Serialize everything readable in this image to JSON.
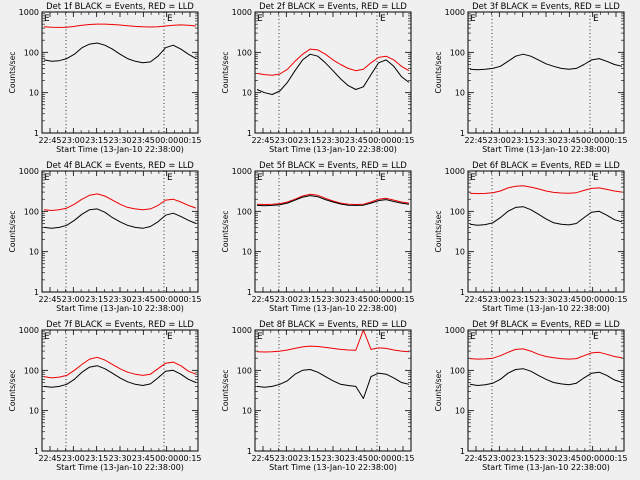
{
  "colors": {
    "background": "#f0f0f0",
    "events": "#000000",
    "lld": "#ee0000"
  },
  "chart_data": [
    {
      "type": "line",
      "title": "Det 1f BLACK = Events, RED = LLD",
      "xlabel": "Start Time (13-Jan-10 22:38:00)",
      "ylabel": "Counts/sec",
      "ylim": [
        1,
        1000
      ],
      "yscale": "log",
      "xticks": [
        "22:45",
        "23:00",
        "23:15",
        "23:30",
        "23:45",
        "00:00",
        "00:15"
      ],
      "yticks": [
        "1",
        "10",
        "100",
        "1000"
      ],
      "markers": [
        "E",
        "E"
      ],
      "grid": false,
      "series": [
        {
          "color": "red",
          "values": [
            430,
            420,
            415,
            420,
            440,
            470,
            490,
            500,
            500,
            490,
            475,
            455,
            440,
            430,
            425,
            430,
            450,
            470,
            480,
            470,
            450
          ]
        },
        {
          "color": "black",
          "values": [
            65,
            60,
            62,
            70,
            90,
            130,
            160,
            170,
            150,
            120,
            90,
            70,
            60,
            55,
            58,
            80,
            130,
            150,
            120,
            90,
            70
          ]
        }
      ]
    },
    {
      "type": "line",
      "title": "Det 2f BLACK = Events, RED = LLD",
      "xlabel": "Start Time (13-Jan-10 22:38:00)",
      "ylabel": "Counts/sec",
      "ylim": [
        1,
        1000
      ],
      "yscale": "log",
      "xticks": [
        "22:45",
        "23:00",
        "23:15",
        "23:30",
        "23:45",
        "00:00",
        "00:15"
      ],
      "yticks": [
        "1",
        "10",
        "100",
        "1000"
      ],
      "markers": [
        "E",
        "E"
      ],
      "grid": false,
      "series": [
        {
          "color": "red",
          "values": [
            30,
            28,
            27,
            29,
            38,
            60,
            90,
            120,
            115,
            90,
            65,
            50,
            40,
            35,
            38,
            55,
            75,
            80,
            65,
            45,
            35
          ]
        },
        {
          "color": "black",
          "values": [
            12,
            10,
            9,
            11,
            18,
            35,
            65,
            90,
            80,
            55,
            35,
            22,
            15,
            12,
            14,
            28,
            55,
            65,
            45,
            25,
            18
          ]
        }
      ]
    },
    {
      "type": "line",
      "title": "Det 3f BLACK = Events, RED = LLD",
      "xlabel": "Start Time (13-Jan-10 22:38:00)",
      "ylabel": "Counts/sec",
      "ylim": [
        1,
        1000
      ],
      "yscale": "log",
      "xticks": [
        "22:45",
        "23:00",
        "23:15",
        "23:30",
        "23:45",
        "00:00",
        "00:15"
      ],
      "yticks": [
        "1",
        "10",
        "100",
        "1000"
      ],
      "markers": [
        "E",
        "E"
      ],
      "grid": false,
      "series": [
        {
          "color": "black",
          "values": [
            38,
            37,
            38,
            40,
            45,
            60,
            80,
            90,
            80,
            65,
            52,
            45,
            40,
            38,
            40,
            50,
            65,
            70,
            60,
            50,
            45
          ]
        }
      ]
    },
    {
      "type": "line",
      "title": "Det 4f BLACK = Events, RED = LLD",
      "xlabel": "Start Time (13-Jan-10 22:38:00)",
      "ylabel": "Counts/sec",
      "ylim": [
        1,
        1000
      ],
      "yscale": "log",
      "xticks": [
        "22:45",
        "23:00",
        "23:15",
        "23:30",
        "23:45",
        "00:00",
        "00:15"
      ],
      "yticks": [
        "1",
        "10",
        "100",
        "1000"
      ],
      "markers": [
        "E",
        "E"
      ],
      "grid": false,
      "series": [
        {
          "color": "red",
          "values": [
            110,
            105,
            110,
            120,
            150,
            200,
            250,
            270,
            240,
            190,
            150,
            125,
            115,
            110,
            115,
            140,
            190,
            200,
            170,
            140,
            120
          ]
        },
        {
          "color": "black",
          "values": [
            40,
            38,
            40,
            45,
            60,
            85,
            110,
            115,
            95,
            70,
            55,
            45,
            40,
            38,
            42,
            55,
            80,
            90,
            75,
            60,
            50
          ]
        }
      ]
    },
    {
      "type": "line",
      "title": "Det 5f BLACK = Events, RED = LLD",
      "xlabel": "Start Time (13-Jan-10 22:38:00)",
      "ylabel": "Counts/sec",
      "ylim": [
        1,
        1000
      ],
      "yscale": "log",
      "xticks": [
        "22:45",
        "23:00",
        "23:15",
        "23:30",
        "23:45",
        "00:00",
        "00:15"
      ],
      "yticks": [
        "1",
        "10",
        "100",
        "1000"
      ],
      "markers": [
        "E",
        "E"
      ],
      "grid": false,
      "series": [
        {
          "color": "red",
          "values": [
            150,
            148,
            150,
            155,
            170,
            200,
            240,
            265,
            250,
            210,
            180,
            160,
            150,
            148,
            150,
            170,
            200,
            210,
            190,
            170,
            160
          ]
        },
        {
          "color": "black",
          "values": [
            140,
            138,
            140,
            145,
            160,
            190,
            225,
            245,
            230,
            195,
            170,
            152,
            142,
            140,
            142,
            160,
            185,
            195,
            175,
            160,
            150
          ]
        }
      ]
    },
    {
      "type": "line",
      "title": "Det 6f BLACK = Events, RED = LLD",
      "xlabel": "Start Time (13-Jan-10 22:38:00)",
      "ylabel": "Counts/sec",
      "ylim": [
        1,
        1000
      ],
      "yscale": "log",
      "xticks": [
        "22:45",
        "23:00",
        "23:15",
        "23:30",
        "23:45",
        "00:00",
        "00:15"
      ],
      "yticks": [
        "1",
        "10",
        "100",
        "1000"
      ],
      "markers": [
        "E",
        "E"
      ],
      "grid": false,
      "series": [
        {
          "color": "red",
          "values": [
            280,
            275,
            278,
            290,
            320,
            380,
            420,
            430,
            400,
            360,
            320,
            295,
            285,
            280,
            290,
            330,
            370,
            380,
            350,
            320,
            300
          ]
        },
        {
          "color": "black",
          "values": [
            48,
            45,
            47,
            52,
            70,
            100,
            125,
            130,
            110,
            85,
            65,
            52,
            48,
            46,
            50,
            70,
            95,
            100,
            80,
            62,
            55
          ]
        }
      ]
    },
    {
      "type": "line",
      "title": "Det 7f BLACK = Events, RED = LLD",
      "xlabel": "Start Time (13-Jan-10 22:38:00)",
      "ylabel": "Counts/sec",
      "ylim": [
        1,
        1000
      ],
      "yscale": "log",
      "xticks": [
        "22:45",
        "23:00",
        "23:15",
        "23:30",
        "23:45",
        "00:00",
        "00:15"
      ],
      "yticks": [
        "1",
        "10",
        "100",
        "1000"
      ],
      "markers": [
        "E",
        "E"
      ],
      "grid": false,
      "series": [
        {
          "color": "red",
          "values": [
            70,
            65,
            68,
            75,
            100,
            140,
            190,
            210,
            180,
            140,
            110,
            90,
            80,
            75,
            80,
            110,
            150,
            160,
            130,
            95,
            80
          ]
        },
        {
          "color": "black",
          "values": [
            40,
            38,
            40,
            45,
            60,
            90,
            120,
            130,
            110,
            85,
            65,
            52,
            45,
            42,
            46,
            65,
            95,
            100,
            80,
            60,
            50
          ]
        }
      ]
    },
    {
      "type": "line",
      "title": "Det 8f BLACK = Events, RED = LLD",
      "xlabel": "Start Time (13-Jan-10 22:38:00)",
      "ylabel": "Counts/sec",
      "ylim": [
        1,
        1000
      ],
      "yscale": "log",
      "xticks": [
        "22:45",
        "23:00",
        "23:15",
        "23:30",
        "23:45",
        "00:00",
        "00:15"
      ],
      "yticks": [
        "1",
        "10",
        "100",
        "1000"
      ],
      "markers": [
        "E",
        "E"
      ],
      "grid": false,
      "series": [
        {
          "color": "red",
          "values": [
            290,
            285,
            290,
            300,
            320,
            350,
            380,
            400,
            390,
            370,
            350,
            330,
            320,
            315,
            1000,
            330,
            360,
            350,
            320,
            300,
            290
          ]
        },
        {
          "color": "black",
          "values": [
            40,
            38,
            40,
            45,
            55,
            80,
            100,
            105,
            90,
            70,
            55,
            45,
            42,
            40,
            20,
            70,
            85,
            80,
            65,
            50,
            45
          ]
        }
      ]
    },
    {
      "type": "line",
      "title": "Det 9f BLACK = Events, RED = LLD",
      "xlabel": "Start Time (13-Jan-10 22:38:00)",
      "ylabel": "Counts/sec",
      "ylim": [
        1,
        1000
      ],
      "yscale": "log",
      "xticks": [
        "22:45",
        "23:00",
        "23:15",
        "23:30",
        "23:45",
        "00:00",
        "00:15"
      ],
      "yticks": [
        "1",
        "10",
        "100",
        "1000"
      ],
      "markers": [
        "E",
        "E"
      ],
      "grid": false,
      "series": [
        {
          "color": "red",
          "values": [
            195,
            190,
            192,
            200,
            230,
            280,
            330,
            340,
            300,
            250,
            220,
            205,
            195,
            190,
            195,
            230,
            270,
            280,
            250,
            220,
            205
          ]
        },
        {
          "color": "black",
          "values": [
            45,
            42,
            44,
            48,
            60,
            85,
            105,
            110,
            95,
            75,
            60,
            50,
            46,
            44,
            48,
            65,
            85,
            90,
            75,
            58,
            50
          ]
        }
      ]
    }
  ]
}
